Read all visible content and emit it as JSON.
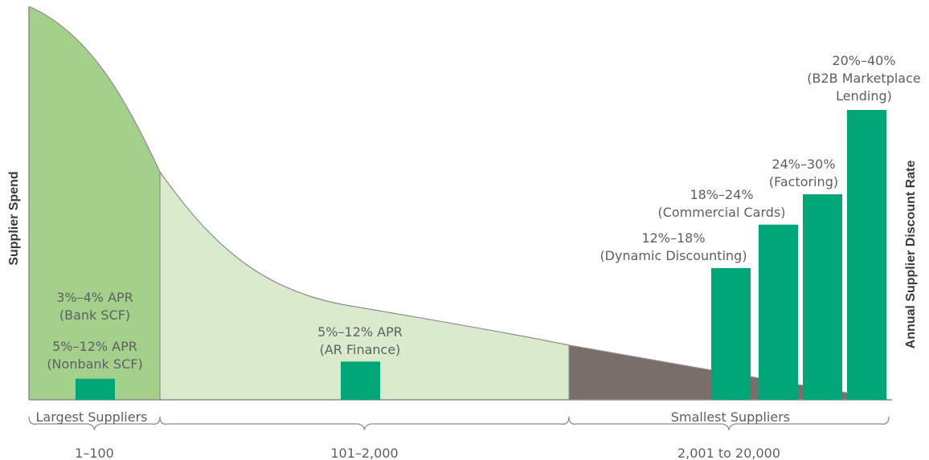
{
  "chart_data": {
    "type": "area",
    "ylabel_left": "Supplier Spend",
    "ylabel_right": "Annual Supplier Discount Rate",
    "segments": [
      {
        "name": "Largest Suppliers",
        "range": "1–100",
        "color": "#a3d18c"
      },
      {
        "name": "",
        "range": "101–2,000",
        "color": "#d9ebcc"
      },
      {
        "name": "Smallest Suppliers",
        "range": "2,001 to 20,000",
        "color": "#7a6e6a"
      }
    ],
    "bar_color": "#00a676",
    "bars": [
      {
        "label_lines": [
          "5%–12% APR",
          "(Nonbank SCF)"
        ],
        "value": 1.6
      },
      {
        "label_lines": [
          "5%–12% APR",
          "(AR Finance)"
        ],
        "value": 2.9
      },
      {
        "label_lines": [
          "12%–18%",
          "(Dynamic Discounting)"
        ],
        "value": 10.0
      },
      {
        "label_lines": [
          "18%–24%",
          "(Commercial Cards)"
        ],
        "value": 13.3
      },
      {
        "label_lines": [
          "24%–30%",
          "(Factoring)"
        ],
        "value": 15.6
      },
      {
        "label_lines": [
          "20%–40%",
          "(B2B Marketplace",
          "Lending)"
        ],
        "value": 22.0
      }
    ],
    "extra_labels": [
      {
        "lines": [
          "3%–4% APR",
          "(Bank SCF)"
        ]
      }
    ],
    "ylim": [
      0,
      30
    ]
  }
}
